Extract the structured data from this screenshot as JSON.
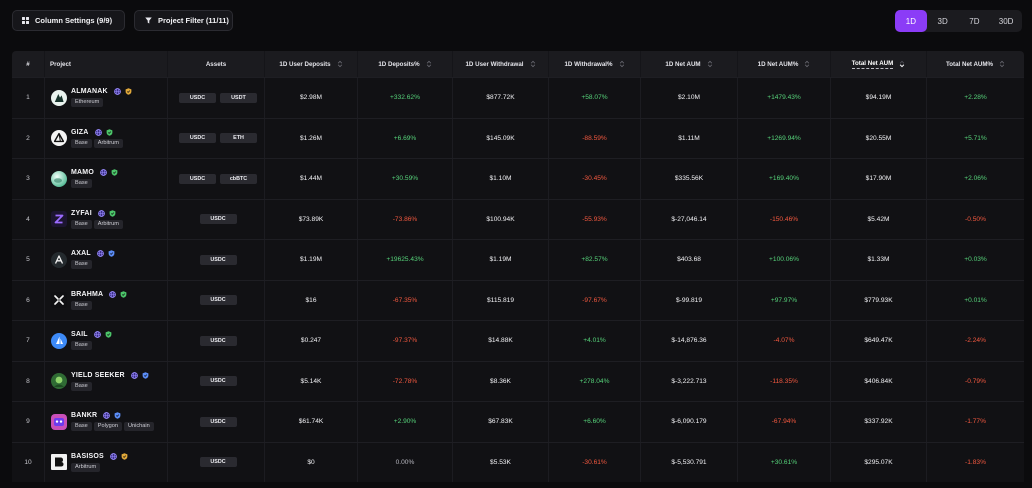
{
  "toolbar": {
    "column_settings": {
      "label": "Column Settings (9/9)",
      "icon": "grid-icon"
    },
    "project_filter": {
      "label": "Project Filter (11/11)",
      "icon": "filter-icon"
    },
    "timeframes": [
      {
        "label": "1D",
        "active": true
      },
      {
        "label": "3D",
        "active": false
      },
      {
        "label": "7D",
        "active": false
      },
      {
        "label": "30D",
        "active": false
      }
    ]
  },
  "table": {
    "columns": [
      {
        "label": "#",
        "sortable": false,
        "sorted_desc": false
      },
      {
        "label": "Project",
        "sortable": false,
        "sorted_desc": false
      },
      {
        "label": "Assets",
        "sortable": false,
        "sorted_desc": false
      },
      {
        "label": "1D User Deposits",
        "sortable": true,
        "sorted_desc": false
      },
      {
        "label": "1D Deposits%",
        "sortable": true,
        "sorted_desc": false
      },
      {
        "label": "1D User Withdrawal",
        "sortable": true,
        "sorted_desc": false
      },
      {
        "label": "1D Withdrawal%",
        "sortable": true,
        "sorted_desc": false
      },
      {
        "label": "1D Net AUM",
        "sortable": true,
        "sorted_desc": false
      },
      {
        "label": "1D Net AUM%",
        "sortable": true,
        "sorted_desc": false
      },
      {
        "label": "Total Net AUM",
        "sortable": true,
        "sorted_desc": true
      },
      {
        "label": "Total Net AUM%",
        "sortable": true,
        "sorted_desc": false
      }
    ],
    "rows": [
      {
        "rank": "1",
        "name": "ALMANAK",
        "logo": "almanak-logo",
        "shield_color": "#e2a93a",
        "chains": [
          "Ethereum"
        ],
        "assets": [
          "USDC",
          "USDT"
        ],
        "deposits": "$2.98M",
        "deposits_pct": "+332.62%",
        "withdrawal": "$877.72K",
        "withdrawal_pct": "+58.07%",
        "net_aum": "$2.10M",
        "net_aum_pct": "+1479.43%",
        "total_aum": "$94.19M",
        "total_aum_pct": "+2.28%"
      },
      {
        "rank": "2",
        "name": "GIZA",
        "logo": "giza-logo",
        "shield_color": "#4cc66a",
        "chains": [
          "Base",
          "Arbitrum"
        ],
        "assets": [
          "USDC",
          "ETH"
        ],
        "deposits": "$1.26M",
        "deposits_pct": "+6.69%",
        "withdrawal": "$145.09K",
        "withdrawal_pct": "-88.59%",
        "net_aum": "$1.11M",
        "net_aum_pct": "+1269.94%",
        "total_aum": "$20.55M",
        "total_aum_pct": "+5.71%"
      },
      {
        "rank": "3",
        "name": "MAMO",
        "logo": "mamo-logo",
        "shield_color": "#4cc66a",
        "chains": [
          "Base"
        ],
        "assets": [
          "USDC",
          "cbBTC"
        ],
        "deposits": "$1.44M",
        "deposits_pct": "+30.59%",
        "withdrawal": "$1.10M",
        "withdrawal_pct": "-30.45%",
        "net_aum": "$335.56K",
        "net_aum_pct": "+169.40%",
        "total_aum": "$17.90M",
        "total_aum_pct": "+2.06%"
      },
      {
        "rank": "4",
        "name": "ZYFAI",
        "logo": "zyfai-logo",
        "shield_color": "#4cc66a",
        "chains": [
          "Base",
          "Arbitrum"
        ],
        "assets": [
          "USDC"
        ],
        "deposits": "$73.89K",
        "deposits_pct": "-73.86%",
        "withdrawal": "$100.94K",
        "withdrawal_pct": "-55.93%",
        "net_aum": "$-27,046.14",
        "net_aum_pct": "-150.46%",
        "total_aum": "$5.42M",
        "total_aum_pct": "-0.50%"
      },
      {
        "rank": "5",
        "name": "AXAL",
        "logo": "axal-logo",
        "shield_color": "#5b8df7",
        "chains": [
          "Base"
        ],
        "assets": [
          "USDC"
        ],
        "deposits": "$1.19M",
        "deposits_pct": "+19625.43%",
        "withdrawal": "$1.19M",
        "withdrawal_pct": "+82.57%",
        "net_aum": "$403.68",
        "net_aum_pct": "+100.06%",
        "total_aum": "$1.33M",
        "total_aum_pct": "+0.03%"
      },
      {
        "rank": "6",
        "name": "BRAHMA",
        "logo": "brahma-logo",
        "shield_color": "#4cc66a",
        "chains": [
          "Base"
        ],
        "assets": [
          "USDC"
        ],
        "deposits": "$16",
        "deposits_pct": "-67.35%",
        "withdrawal": "$115.819",
        "withdrawal_pct": "-97.67%",
        "net_aum": "$-99.819",
        "net_aum_pct": "+97.97%",
        "total_aum": "$779.93K",
        "total_aum_pct": "+0.01%"
      },
      {
        "rank": "7",
        "name": "SAIL",
        "logo": "sail-logo",
        "shield_color": "#4cc66a",
        "chains": [
          "Base"
        ],
        "assets": [
          "USDC"
        ],
        "deposits": "$0.247",
        "deposits_pct": "-97.37%",
        "withdrawal": "$14.88K",
        "withdrawal_pct": "+4.01%",
        "net_aum": "$-14,876.36",
        "net_aum_pct": "-4.07%",
        "total_aum": "$649.47K",
        "total_aum_pct": "-2.24%"
      },
      {
        "rank": "8",
        "name": "YIELD SEEKER",
        "logo": "yield-seeker-logo",
        "shield_color": "#5b8df7",
        "chains": [
          "Base"
        ],
        "assets": [
          "USDC"
        ],
        "deposits": "$5.14K",
        "deposits_pct": "-72.78%",
        "withdrawal": "$8.36K",
        "withdrawal_pct": "+278.04%",
        "net_aum": "$-3,222.713",
        "net_aum_pct": "-118.35%",
        "total_aum": "$406.84K",
        "total_aum_pct": "-0.79%"
      },
      {
        "rank": "9",
        "name": "BANKR",
        "logo": "bankr-logo",
        "shield_color": "#5b8df7",
        "chains": [
          "Base",
          "Polygon",
          "Unichain"
        ],
        "assets": [
          "USDC"
        ],
        "deposits": "$61.74K",
        "deposits_pct": "+2.90%",
        "withdrawal": "$67.83K",
        "withdrawal_pct": "+6.60%",
        "net_aum": "$-6,090.179",
        "net_aum_pct": "-67.94%",
        "total_aum": "$337.92K",
        "total_aum_pct": "-1.77%"
      },
      {
        "rank": "10",
        "name": "BASISOS",
        "logo": "basisos-logo",
        "shield_color": "#e2a93a",
        "chains": [
          "Arbitrum"
        ],
        "assets": [
          "USDC"
        ],
        "deposits": "$0",
        "deposits_pct": "0.00%",
        "withdrawal": "$5.53K",
        "withdrawal_pct": "-30.61%",
        "net_aum": "$-5,530.791",
        "net_aum_pct": "+30.61%",
        "total_aum": "$295.07K",
        "total_aum_pct": "-1.83%"
      }
    ]
  },
  "colors": {
    "accent": "#8b3cf7",
    "positive": "#56d37a",
    "negative": "#f2583f",
    "neutral": "#b8b8c0",
    "badge_globe": "#9a8cff"
  }
}
